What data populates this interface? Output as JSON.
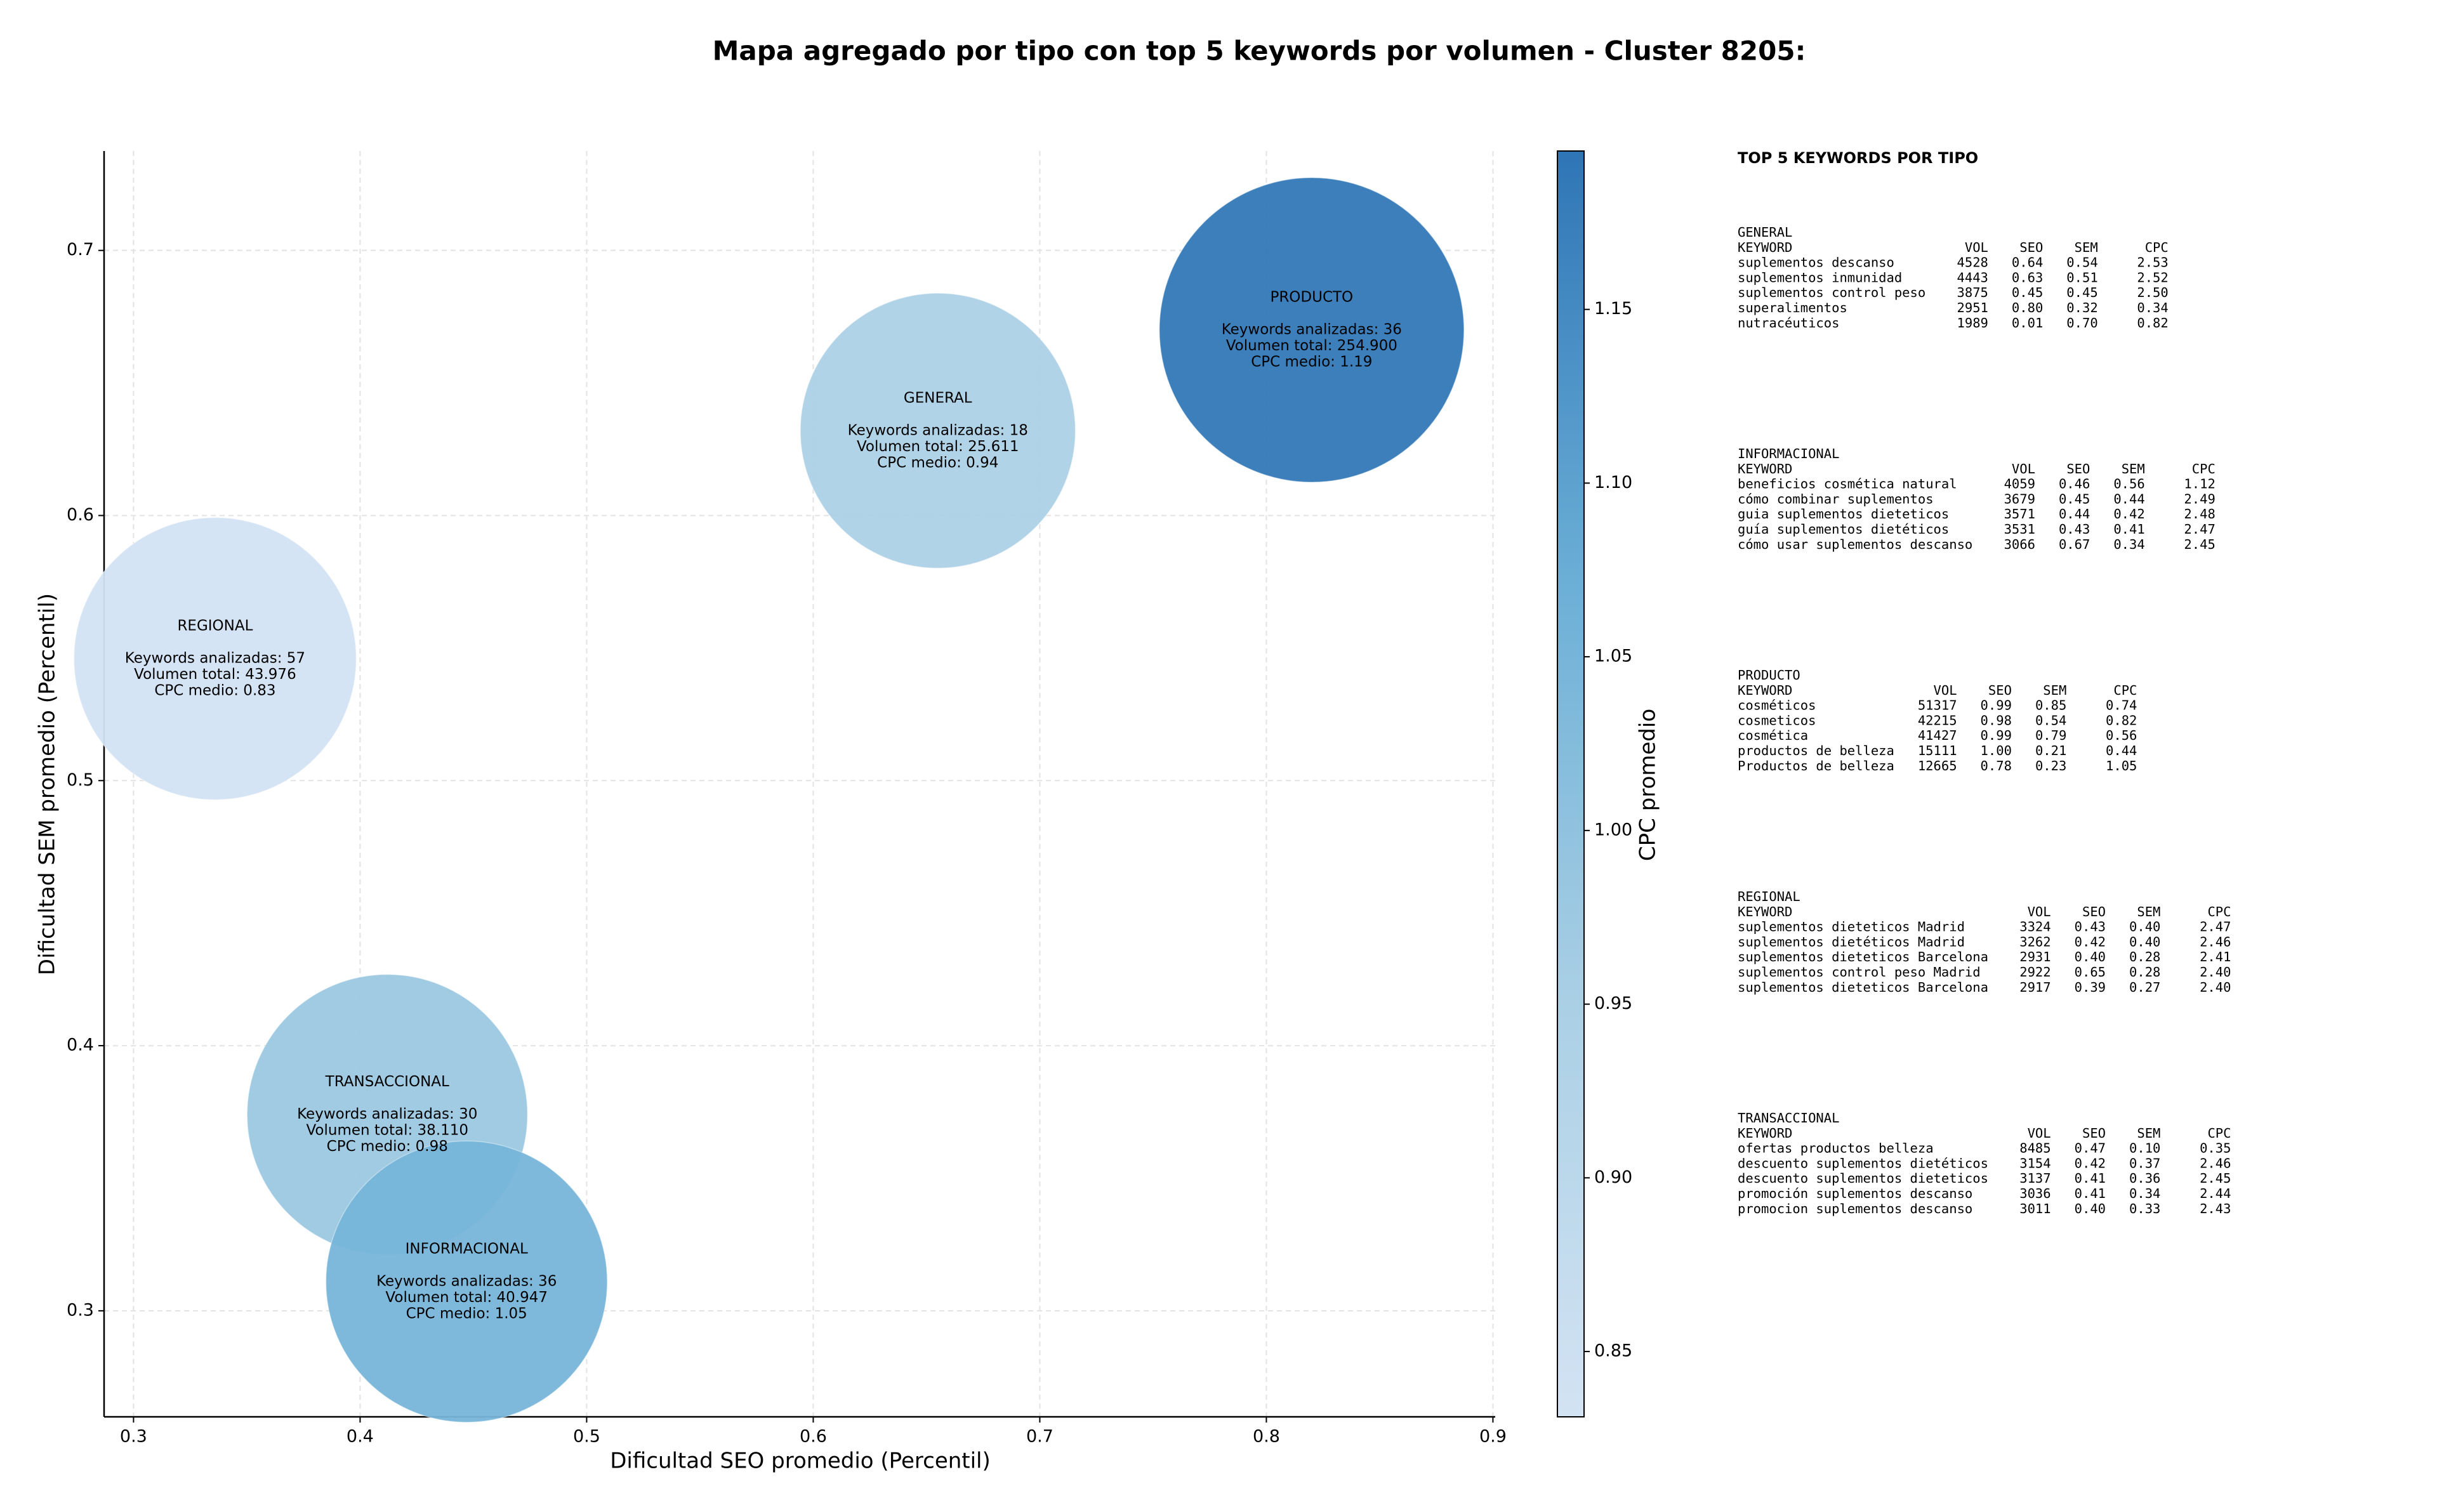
{
  "chart_data": {
    "type": "bubble",
    "title": "Mapa agregado por tipo con top 5 keywords por volumen - Cluster 8205:",
    "xlabel": "Dificultad SEO promedio (Percentil)",
    "ylabel": "Dificultad SEM promedio (Percentil)",
    "xlim": [
      0.287,
      0.901
    ],
    "ylim": [
      0.26,
      0.7375
    ],
    "xticks": [
      0.3,
      0.4,
      0.5,
      0.6,
      0.7,
      0.8,
      0.9
    ],
    "yticks": [
      0.3,
      0.4,
      0.5,
      0.6,
      0.7
    ],
    "grid": true,
    "colorbar": {
      "label": "CPC promedio",
      "lim": [
        0.8312,
        1.1956
      ],
      "ticks": [
        0.85,
        {
          "value": 0.9,
          "label": "0.90"
        },
        0.95,
        {
          "value": 1,
          "label": "1.00"
        },
        1.05,
        {
          "value": 1.1,
          "label": "1.10"
        },
        1.15
      ],
      "colormap": [
        "#d3e3f3",
        "#a9cfe5",
        "#6aaed6",
        "#2e75b6"
      ]
    },
    "series": [
      {
        "name": "GENERAL",
        "x": 0.655,
        "y": 0.632,
        "size": 25611,
        "cpc": 0.94,
        "text_lines": [
          "Keywords analizadas: 18",
          "Volumen total: 25.611",
          "CPC medio: 0.94"
        ]
      },
      {
        "name": "PRODUCTO",
        "x": 0.82,
        "y": 0.67,
        "size": 254900,
        "cpc": 1.19,
        "text_lines": [
          "Keywords analizadas: 36",
          "Volumen total: 254.900",
          "CPC medio: 1.19"
        ]
      },
      {
        "name": "REGIONAL",
        "x": 0.336,
        "y": 0.546,
        "size": 43976,
        "cpc": 0.83,
        "text_lines": [
          "Keywords analizadas: 57",
          "Volumen total: 43.976",
          "CPC medio: 0.83"
        ]
      },
      {
        "name": "TRANSACCIONAL",
        "x": 0.412,
        "y": 0.374,
        "size": 38110,
        "cpc": 0.98,
        "text_lines": [
          "Keywords analizadas: 30",
          "Volumen total: 38.110",
          "CPC medio: 0.98"
        ]
      },
      {
        "name": "INFORMACIONAL",
        "x": 0.447,
        "y": 0.311,
        "size": 40947,
        "cpc": 1.05,
        "text_lines": [
          "Keywords analizadas: 36",
          "Volumen total: 40.947",
          "CPC medio: 1.05"
        ]
      }
    ]
  },
  "keyword_panel": {
    "title": "TOP 5 KEYWORDS POR TIPO",
    "groups": [
      {
        "name": "GENERAL",
        "header": [
          "KEYWORD",
          "VOL",
          "SEO",
          "SEM",
          "CPC"
        ],
        "rows": [
          [
            "suplementos descanso",
            "4528",
            "0.64",
            "0.54",
            "2.53"
          ],
          [
            "suplementos inmunidad",
            "4443",
            "0.63",
            "0.51",
            "2.52"
          ],
          [
            "suplementos control peso",
            "3875",
            "0.45",
            "0.45",
            "2.50"
          ],
          [
            "superalimentos",
            "2951",
            "0.80",
            "0.32",
            "0.34"
          ],
          [
            "nutracéuticos",
            "1989",
            "0.01",
            "0.70",
            "0.82"
          ]
        ]
      },
      {
        "name": "INFORMACIONAL",
        "header": [
          "KEYWORD",
          "VOL",
          "SEO",
          "SEM",
          "CPC"
        ],
        "rows": [
          [
            "beneficios cosmética natural",
            "4059",
            "0.46",
            "0.56",
            "1.12"
          ],
          [
            "cómo combinar suplementos",
            "3679",
            "0.45",
            "0.44",
            "2.49"
          ],
          [
            "guia suplementos dieteticos",
            "3571",
            "0.44",
            "0.42",
            "2.48"
          ],
          [
            "guía suplementos dietéticos",
            "3531",
            "0.43",
            "0.41",
            "2.47"
          ],
          [
            "cómo usar suplementos descanso",
            "3066",
            "0.67",
            "0.34",
            "2.45"
          ]
        ]
      },
      {
        "name": "PRODUCTO",
        "header": [
          "KEYWORD",
          "VOL",
          "SEO",
          "SEM",
          "CPC"
        ],
        "rows": [
          [
            "cosméticos",
            "51317",
            "0.99",
            "0.85",
            "0.74"
          ],
          [
            "cosmeticos",
            "42215",
            "0.98",
            "0.54",
            "0.82"
          ],
          [
            "cosmética",
            "41427",
            "0.99",
            "0.79",
            "0.56"
          ],
          [
            "productos de belleza",
            "15111",
            "1.00",
            "0.21",
            "0.44"
          ],
          [
            "Productos de belleza",
            "12665",
            "0.78",
            "0.23",
            "1.05"
          ]
        ]
      },
      {
        "name": "REGIONAL",
        "header": [
          "KEYWORD",
          "VOL",
          "SEO",
          "SEM",
          "CPC"
        ],
        "rows": [
          [
            "suplementos dieteticos Madrid",
            "3324",
            "0.43",
            "0.40",
            "2.47"
          ],
          [
            "suplementos dietéticos Madrid",
            "3262",
            "0.42",
            "0.40",
            "2.46"
          ],
          [
            "suplementos dieteticos Barcelona",
            "2931",
            "0.40",
            "0.28",
            "2.41"
          ],
          [
            "suplementos control peso Madrid",
            "2922",
            "0.65",
            "0.28",
            "2.40"
          ],
          [
            "suplementos dieteticos Barcelona",
            "2917",
            "0.39",
            "0.27",
            "2.40"
          ]
        ]
      },
      {
        "name": "TRANSACCIONAL",
        "header": [
          "KEYWORD",
          "VOL",
          "SEO",
          "SEM",
          "CPC"
        ],
        "rows": [
          [
            "ofertas productos belleza",
            "8485",
            "0.47",
            "0.10",
            "0.35"
          ],
          [
            "descuento suplementos dietéticos",
            "3154",
            "0.42",
            "0.37",
            "2.46"
          ],
          [
            "descuento suplementos dieteticos",
            "3137",
            "0.41",
            "0.36",
            "2.45"
          ],
          [
            "promoción suplementos descanso",
            "3036",
            "0.41",
            "0.34",
            "2.44"
          ],
          [
            "promocion suplementos descanso",
            "3011",
            "0.40",
            "0.33",
            "2.43"
          ]
        ]
      }
    ]
  }
}
